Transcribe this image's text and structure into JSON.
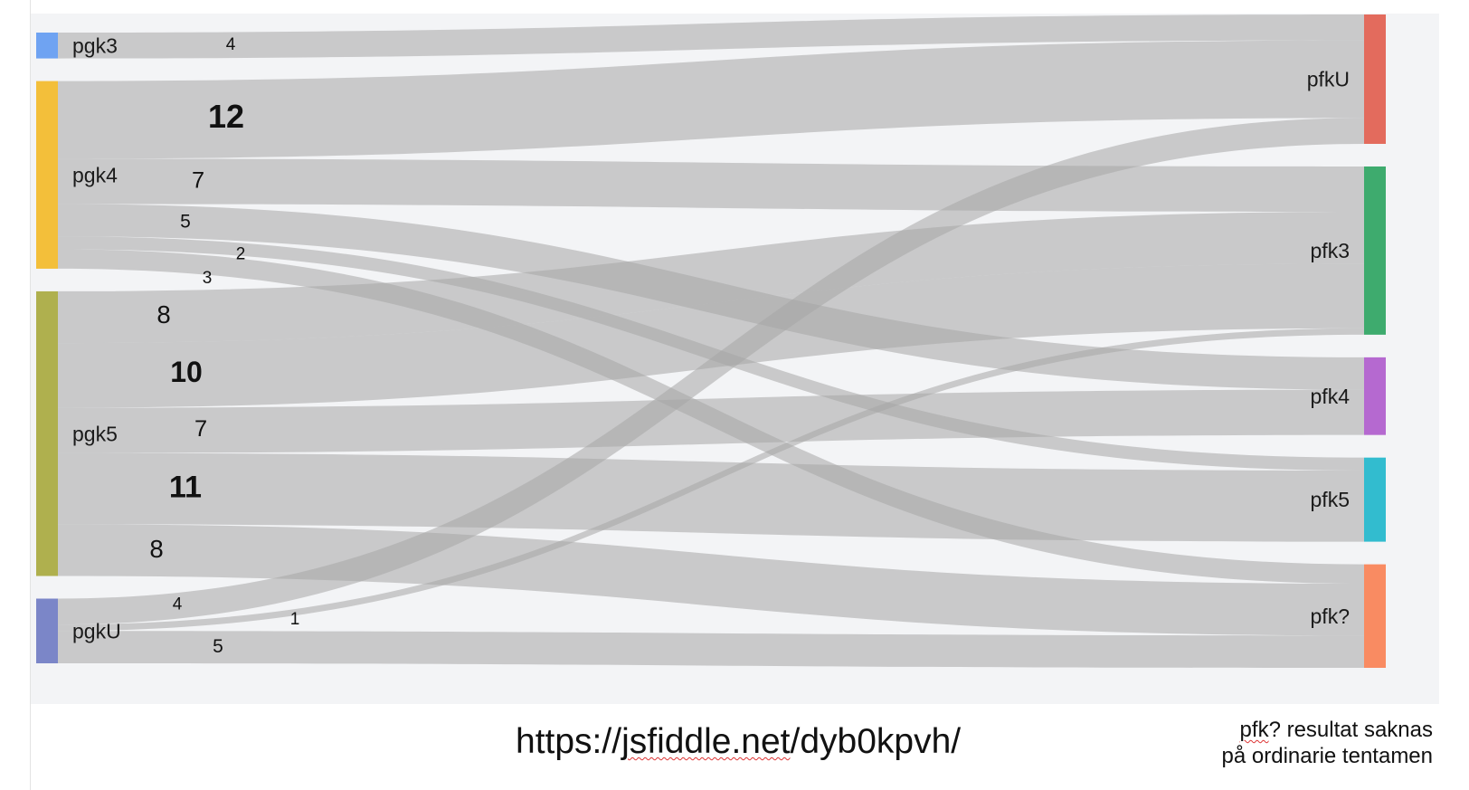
{
  "chart_data": {
    "type": "sankey",
    "title": "",
    "sources": [
      "pgk3",
      "pgk4",
      "pgk5",
      "pgkU"
    ],
    "targets": [
      "pfkU",
      "pfk3",
      "pfk4",
      "pfk5",
      "pfk?"
    ],
    "node_colors": {
      "pgk3": "#6fa3f2",
      "pgk4": "#f3bf3a",
      "pgk5": "#afb04e",
      "pgkU": "#7b86c8",
      "pfkU": "#e36b5d",
      "pfk3": "#3eab6e",
      "pfk4": "#b569d0",
      "pfk5": "#32bccf",
      "pfk?": "#f98b62"
    },
    "flows": [
      {
        "source": "pgk3",
        "target": "pfkU",
        "value": 4
      },
      {
        "source": "pgk4",
        "target": "pfkU",
        "value": 12
      },
      {
        "source": "pgk4",
        "target": "pfk3",
        "value": 7
      },
      {
        "source": "pgk4",
        "target": "pfk4",
        "value": 5
      },
      {
        "source": "pgk4",
        "target": "pfk5",
        "value": 2
      },
      {
        "source": "pgk4",
        "target": "pfk?",
        "value": 3
      },
      {
        "source": "pgk5",
        "target": "pfk3",
        "value": 8
      },
      {
        "source": "pgk5",
        "target": "pfk3",
        "value": 10
      },
      {
        "source": "pgk5",
        "target": "pfk4",
        "value": 7
      },
      {
        "source": "pgk5",
        "target": "pfk5",
        "value": 11
      },
      {
        "source": "pgk5",
        "target": "pfk?",
        "value": 8
      },
      {
        "source": "pgkU",
        "target": "pfkU",
        "value": 4
      },
      {
        "source": "pgkU",
        "target": "pfk3",
        "value": 1
      },
      {
        "source": "pgkU",
        "target": "pfk?",
        "value": 5
      }
    ]
  },
  "footer": {
    "url_prefix": "https://",
    "url_wavy": "jsfiddle.net",
    "url_suffix": "/dyb0kpvh/",
    "note_line1_wavy": "pfk",
    "note_line1_rest": "? resultat saknas",
    "note_line2": "på ordinarie tentamen"
  }
}
